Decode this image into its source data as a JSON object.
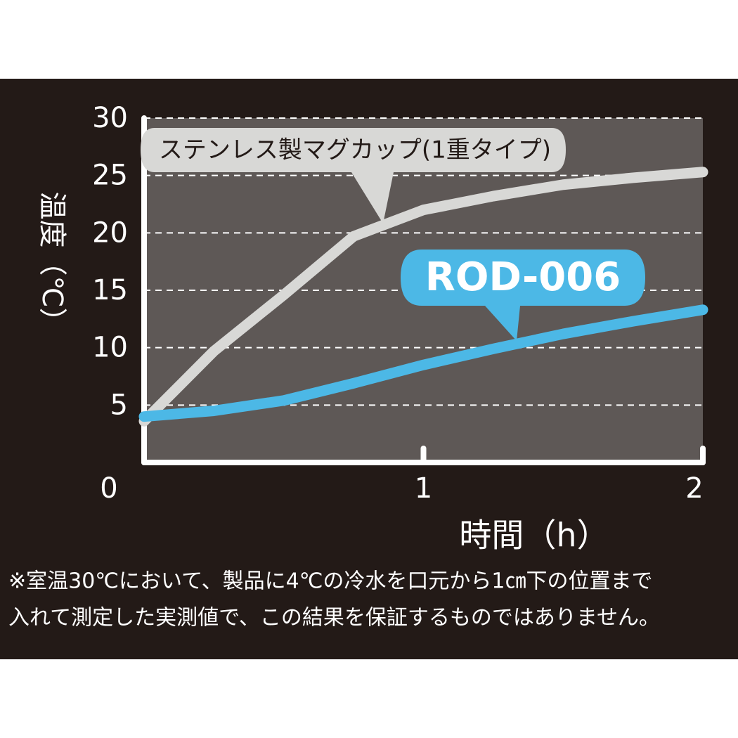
{
  "chart_data": {
    "type": "line",
    "x_label": "時間（h）",
    "y_label": "温度（℃）",
    "x": [
      0,
      0.25,
      0.5,
      0.75,
      1,
      1.25,
      1.5,
      1.75,
      2
    ],
    "series": [
      {
        "name": "ステンレス製マグカップ(1重タイプ)",
        "color": "#d8d8d6",
        "values": [
          3.6,
          9.7,
          14.6,
          19.7,
          22,
          23.2,
          24.2,
          24.8,
          25.3
        ]
      },
      {
        "name": "ROD-006",
        "color": "#4cb8e6",
        "values": [
          4.0,
          4.5,
          5.4,
          6.9,
          8.5,
          9.9,
          11.2,
          12.3,
          13.3
        ]
      }
    ],
    "xlim": [
      0,
      2
    ],
    "xticks": [
      0,
      1,
      2
    ],
    "ylim": [
      0,
      30
    ],
    "yticks": [
      5,
      10,
      15,
      20,
      25,
      30
    ],
    "grid": true,
    "footnote": [
      "※室温30℃において、製品に4℃の冷水を口元から1㎝下の位置まで",
      "入れて測定した実測値で、この結果を保証するものではありません。"
    ]
  }
}
